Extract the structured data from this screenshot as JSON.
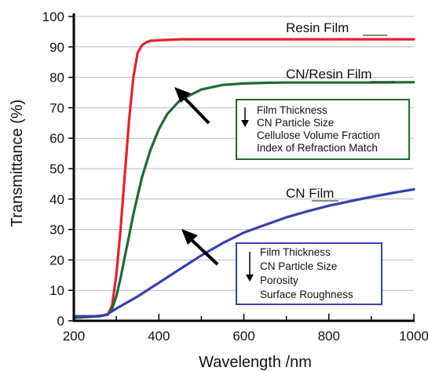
{
  "chart_data": {
    "type": "line",
    "xlabel": "Wavelength /nm",
    "ylabel": "Transmittance (%)",
    "xlim": [
      200,
      1000
    ],
    "ylim": [
      0,
      100
    ],
    "xticks": [
      200,
      400,
      600,
      800,
      1000
    ],
    "yticks": [
      0,
      10,
      20,
      30,
      40,
      50,
      60,
      70,
      80,
      90,
      100
    ],
    "grid": true,
    "series": [
      {
        "name": "Resin Film",
        "color": "#e8202a",
        "x": [
          200,
          260,
          280,
          290,
          300,
          310,
          320,
          330,
          340,
          350,
          360,
          370,
          380,
          400,
          450,
          500,
          600,
          700,
          800,
          900,
          1000
        ],
        "y": [
          1,
          1.5,
          2,
          5,
          15,
          30,
          48,
          66,
          80,
          88,
          90.5,
          91.5,
          92,
          92.2,
          92.5,
          92.5,
          92.5,
          92.5,
          92.5,
          92.5,
          92.5
        ]
      },
      {
        "name": "CN/Resin Film",
        "color": "#1d6b34",
        "x": [
          200,
          260,
          280,
          290,
          300,
          310,
          320,
          330,
          340,
          350,
          360,
          380,
          400,
          420,
          450,
          500,
          550,
          600,
          650,
          700,
          800,
          900,
          1000
        ],
        "y": [
          1,
          1.5,
          2,
          4,
          8,
          14,
          21,
          28,
          35,
          41,
          47,
          56,
          63,
          68,
          72.5,
          76,
          77.5,
          78,
          78.2,
          78.3,
          78.3,
          78.3,
          78.4
        ]
      },
      {
        "name": "CN Film",
        "color": "#3a3fae",
        "x": [
          200,
          250,
          270,
          280,
          300,
          350,
          400,
          450,
          500,
          550,
          600,
          650,
          700,
          750,
          800,
          850,
          900,
          950,
          1000
        ],
        "y": [
          1.5,
          1.5,
          1.8,
          2.3,
          4,
          8,
          12.5,
          17,
          21.5,
          25.5,
          29,
          31.5,
          34,
          36,
          37.8,
          39.3,
          40.7,
          42,
          43.2
        ]
      }
    ],
    "annotations": [
      {
        "id": "upper",
        "border_color": "#1d6b34",
        "lines": [
          "Film Thickness",
          "CN Particle Size",
          "Cellulose Volume Fraction",
          "Index of Refraction Match"
        ]
      },
      {
        "id": "lower",
        "border_color": "#3a3fae",
        "lines": [
          "Film Thickness",
          "CN Particle Size",
          "Porosity",
          "Surface Roughness"
        ]
      }
    ]
  }
}
